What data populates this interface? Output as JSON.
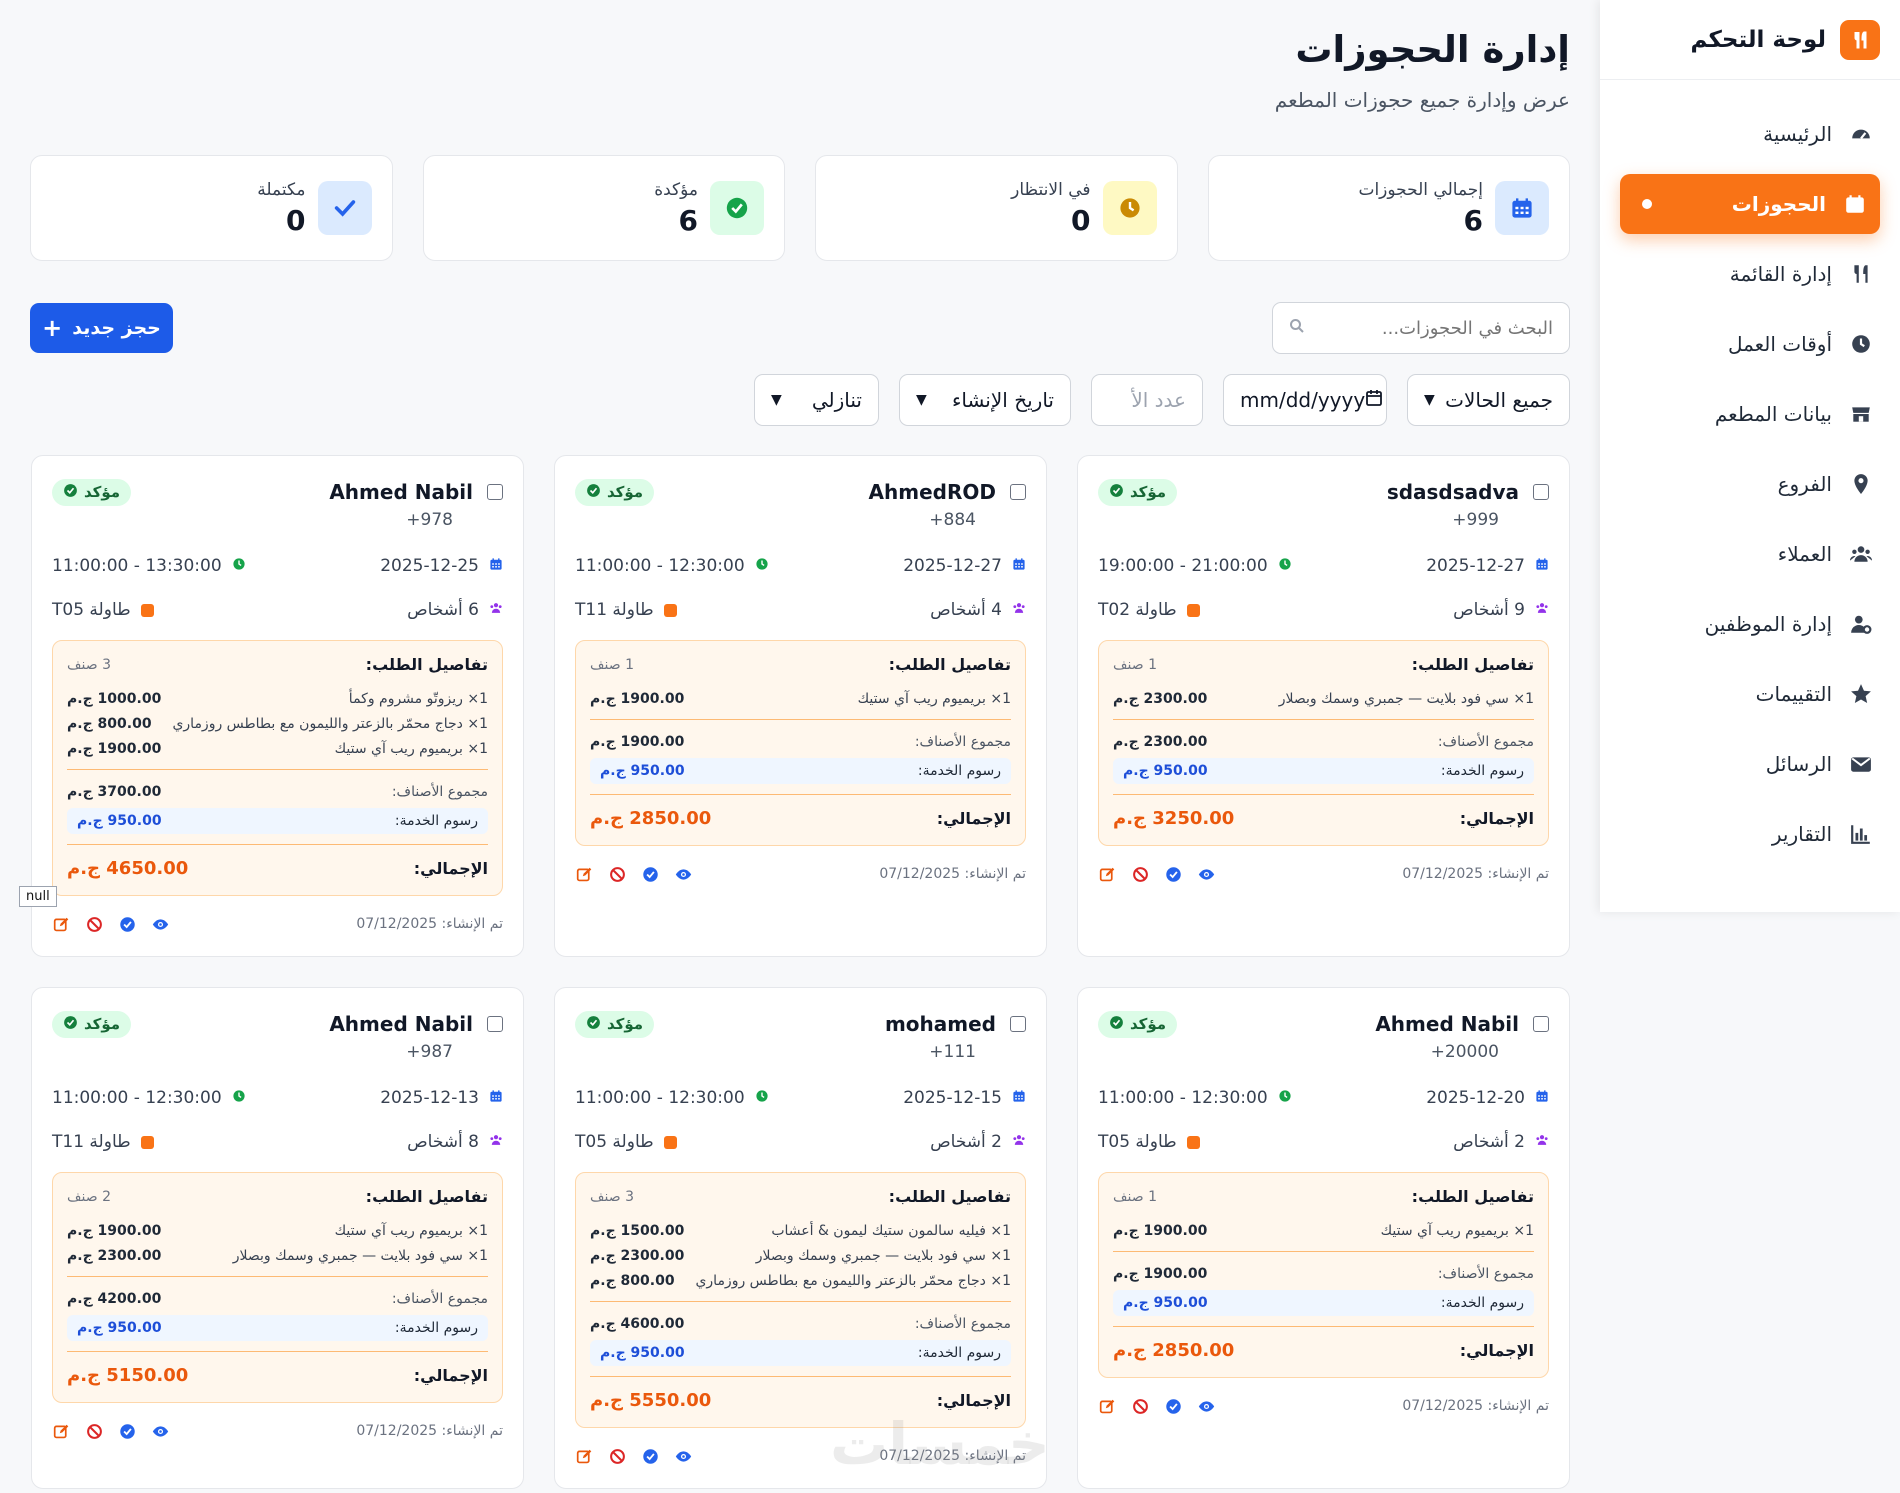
{
  "sidebar": {
    "title": "لوحة التحكم",
    "items": [
      {
        "label": "الرئيسية",
        "icon": "gauge-icon"
      },
      {
        "label": "الحجوزات",
        "icon": "calendar-icon",
        "active": true
      },
      {
        "label": "إدارة القائمة",
        "icon": "utensils-icon"
      },
      {
        "label": "أوقات العمل",
        "icon": "clock-icon"
      },
      {
        "label": "بيانات المطعم",
        "icon": "store-icon"
      },
      {
        "label": "الفروع",
        "icon": "map-pin-icon"
      },
      {
        "label": "العملاء",
        "icon": "users-icon"
      },
      {
        "label": "إدارة الموظفين",
        "icon": "user-gear-icon"
      },
      {
        "label": "التقييمات",
        "icon": "star-icon"
      },
      {
        "label": "الرسائل",
        "icon": "envelope-icon"
      },
      {
        "label": "التقارير",
        "icon": "bar-chart-icon"
      }
    ]
  },
  "header": {
    "title": "إدارة الحجوزات",
    "subtitle": "عرض وإدارة جميع حجوزات المطعم"
  },
  "stats": [
    {
      "label": "إجمالي الحجوزات",
      "value": "6",
      "icon": "calendar-icon",
      "color": "#2563eb",
      "bg": "#dbeafe"
    },
    {
      "label": "في الانتظار",
      "value": "0",
      "icon": "clock-icon",
      "color": "#ca8a04",
      "bg": "#fef9c3"
    },
    {
      "label": "مؤكدة",
      "value": "6",
      "icon": "check-circle-icon",
      "color": "#16a34a",
      "bg": "#dcfce7"
    },
    {
      "label": "مكتملة",
      "value": "0",
      "icon": "check-icon",
      "color": "#2563eb",
      "bg": "#dbeafe"
    }
  ],
  "toolbar": {
    "new_booking": "حجز جديد",
    "search_placeholder": "البحث في الحجوزات...",
    "status_filter": "جميع الحالات",
    "date_placeholder": "mm/dd/yyyy",
    "guests_placeholder": "عدد الأ",
    "sort_by": "تاريخ الإنشاء",
    "sort_order": "تنازلي"
  },
  "labels": {
    "confirmed": "مؤكد",
    "order_details": "تفاصيل الطلب:",
    "items_total": "مجموع الأصناف:",
    "service_fee": "رسوم الخدمة:",
    "grand_total": "الإجمالي:",
    "created_at": "تم الإنشاء: 07/12/2025"
  },
  "tooltip": "null",
  "bookings": [
    {
      "name": "sdasdsadva",
      "phone": "999+",
      "date": "2025-12-27",
      "time": "21:00:00 - 19:00:00",
      "guests": "9 أشخاص",
      "table": "طاولة T02",
      "count": "1 صنف",
      "items": [
        {
          "name": "1× سي فود بلايت — جمبري وسمك وبصلار",
          "price": "2300.00 ج.م"
        }
      ],
      "items_total": "2300.00 ج.م",
      "service": "950.00 ج.م",
      "total": "3250.00 ج.م"
    },
    {
      "name": "AhmedROD",
      "phone": "884+",
      "date": "2025-12-27",
      "time": "12:30:00 - 11:00:00",
      "guests": "4 أشخاص",
      "table": "طاولة T11",
      "count": "1 صنف",
      "items": [
        {
          "name": "1× بريميوم ريب آي ستيك",
          "price": "1900.00 ج.م"
        }
      ],
      "items_total": "1900.00 ج.م",
      "service": "950.00 ج.م",
      "total": "2850.00 ج.م"
    },
    {
      "name": "Ahmed Nabil",
      "phone": "978+",
      "date": "2025-12-25",
      "time": "13:30:00 - 11:00:00",
      "guests": "6 أشخاص",
      "table": "طاولة T05",
      "count": "3 صنف",
      "items": [
        {
          "name": "1× ريزوتّو مشروم وكمأ",
          "price": "1000.00 ج.م"
        },
        {
          "name": "1× دجاج محمّر بالزعتر والليمون مع بطاطس روزماري",
          "price": "800.00 ج.م"
        },
        {
          "name": "1× بريميوم ريب آي ستيك",
          "price": "1900.00 ج.م"
        }
      ],
      "items_total": "3700.00 ج.م",
      "service": "950.00 ج.م",
      "total": "4650.00 ج.م"
    },
    {
      "name": "Ahmed Nabil",
      "phone": "20000+",
      "date": "2025-12-20",
      "time": "12:30:00 - 11:00:00",
      "guests": "2 أشخاص",
      "table": "طاولة T05",
      "count": "1 صنف",
      "items": [
        {
          "name": "1× بريميوم ريب آي ستيك",
          "price": "1900.00 ج.م"
        }
      ],
      "items_total": "1900.00 ج.م",
      "service": "950.00 ج.م",
      "total": "2850.00 ج.م"
    },
    {
      "name": "mohamed",
      "phone": "111+",
      "date": "2025-12-15",
      "time": "12:30:00 - 11:00:00",
      "guests": "2 أشخاص",
      "table": "طاولة T05",
      "count": "3 صنف",
      "items": [
        {
          "name": "1× فيليه سالمون ستيك ليمون & أعشاب",
          "price": "1500.00 ج.م"
        },
        {
          "name": "1× سي فود بلايت — جمبري وسمك وبصلار",
          "price": "2300.00 ج.م"
        },
        {
          "name": "1× دجاج محمّر بالزعتر والليمون مع بطاطس روزماري",
          "price": "800.00 ج.م"
        }
      ],
      "items_total": "4600.00 ج.م",
      "service": "950.00 ج.م",
      "total": "5550.00 ج.م"
    },
    {
      "name": "Ahmed Nabil",
      "phone": "987+",
      "date": "2025-12-13",
      "time": "12:30:00 - 11:00:00",
      "guests": "8 أشخاص",
      "table": "طاولة T11",
      "count": "2 صنف",
      "items": [
        {
          "name": "1× بريميوم ريب آي ستيك",
          "price": "1900.00 ج.م"
        },
        {
          "name": "1× سي فود بلايت — جمبري وسمك وبصلار",
          "price": "2300.00 ج.م"
        }
      ],
      "items_total": "4200.00 ج.م",
      "service": "950.00 ج.م",
      "total": "5150.00 ج.م"
    }
  ]
}
